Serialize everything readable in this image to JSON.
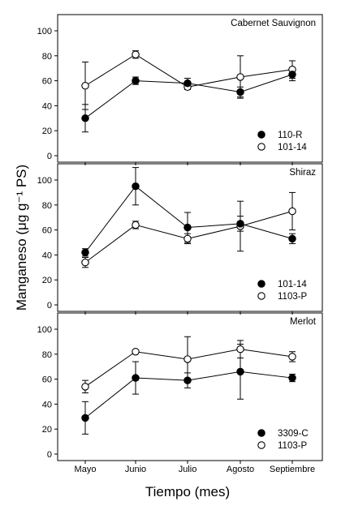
{
  "chart_data": {
    "type": "line",
    "xlabel": "Tiempo (mes)",
    "ylabel": "Manganeso (μg g⁻¹ PS)",
    "categories": [
      "Mayo",
      "Junio",
      "Julio",
      "Agosto",
      "Septiembre"
    ],
    "ylim": [
      0,
      100
    ],
    "yticks": [
      0,
      20,
      40,
      60,
      80,
      100
    ],
    "panels": [
      {
        "title": "Cabernet Sauvignon",
        "legend_position": "bottom-right",
        "series": [
          {
            "name": "110-R",
            "marker": "filled",
            "values": [
              30,
              60,
              58,
              51,
              65
            ],
            "errors": [
              11,
              3,
              4,
              4,
              5
            ]
          },
          {
            "name": "101-14",
            "marker": "open",
            "values": [
              56,
              81,
              55,
              63,
              69
            ],
            "errors": [
              19,
              3,
              2,
              17,
              7
            ]
          }
        ]
      },
      {
        "title": "Shiraz",
        "legend_position": "bottom-right",
        "series": [
          {
            "name": "101-14",
            "marker": "filled",
            "values": [
              42,
              95,
              62,
              65,
              53
            ],
            "errors": [
              3,
              15,
              12,
              6,
              4
            ]
          },
          {
            "name": "1103-P",
            "marker": "open",
            "values": [
              34,
              64,
              53,
              63,
              75
            ],
            "errors": [
              4,
              3,
              4,
              20,
              15
            ]
          }
        ]
      },
      {
        "title": "Merlot",
        "legend_position": "bottom-right",
        "series": [
          {
            "name": "3309-C",
            "marker": "filled",
            "values": [
              29,
              61,
              59,
              66,
              61
            ],
            "errors": [
              13,
              13,
              6,
              22,
              3
            ]
          },
          {
            "name": "1103-P",
            "marker": "open",
            "values": [
              54,
              82,
              76,
              84,
              78
            ],
            "errors": [
              5,
              1,
              18,
              7,
              4
            ]
          }
        ]
      }
    ]
  }
}
